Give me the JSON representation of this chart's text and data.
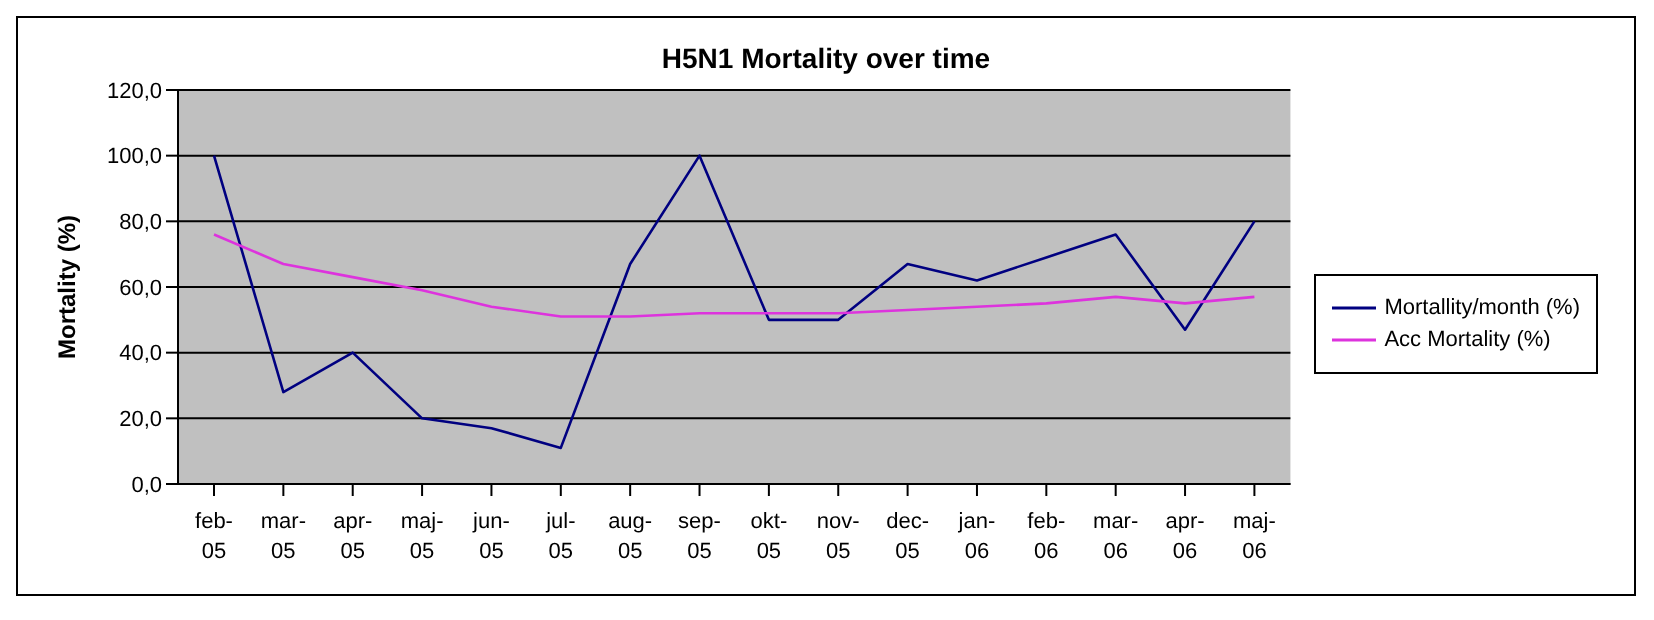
{
  "chart_data": {
    "type": "line",
    "title": "H5N1 Mortality over time",
    "ylabel": "Mortality (%)",
    "categories": [
      "feb-05",
      "mar-05",
      "apr-05",
      "maj-05",
      "jun-05",
      "jul-05",
      "aug-05",
      "sep-05",
      "okt-05",
      "nov-05",
      "dec-05",
      "jan-06",
      "feb-06",
      "mar-06",
      "apr-06",
      "maj-06"
    ],
    "series": [
      {
        "name": "Mortallity/month (%)",
        "color": "#000080",
        "values": [
          100,
          28,
          40,
          20,
          17,
          11,
          67,
          100,
          50,
          50,
          67,
          62,
          69,
          76,
          47,
          80
        ]
      },
      {
        "name": "Acc Mortality (%)",
        "color": "#dd33dd",
        "values": [
          76,
          67,
          63,
          59,
          54,
          51,
          51,
          52,
          52,
          52,
          53,
          54,
          55,
          57,
          55,
          57
        ]
      }
    ],
    "ylim": [
      0,
      120
    ],
    "yticks": [
      {
        "value": 0,
        "label": "0,0"
      },
      {
        "value": 20,
        "label": "20,0"
      },
      {
        "value": 40,
        "label": "40,0"
      },
      {
        "value": 60,
        "label": "60,0"
      },
      {
        "value": 80,
        "label": "80,0"
      },
      {
        "value": 100,
        "label": "100,0"
      },
      {
        "value": 120,
        "label": "120,0"
      }
    ],
    "grid": "y",
    "legend": "right",
    "marker": "none"
  }
}
